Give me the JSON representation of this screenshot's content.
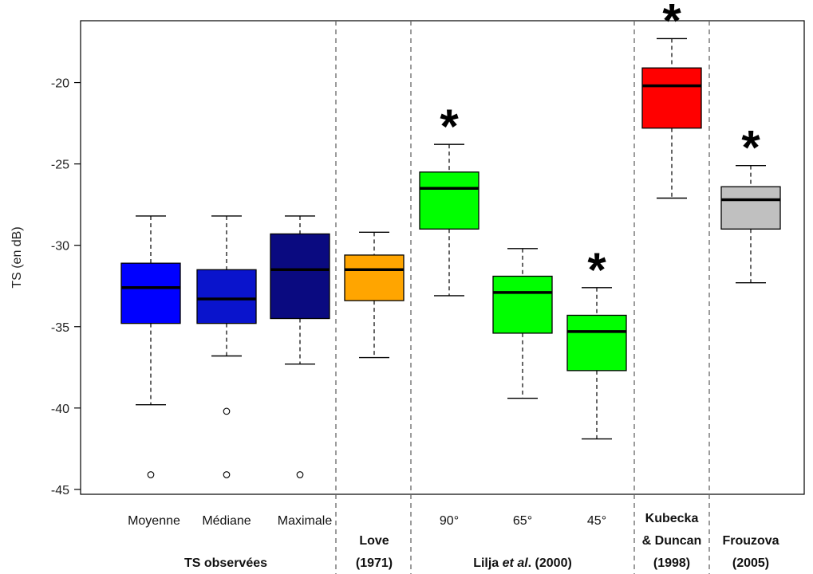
{
  "chart_data": {
    "type": "boxplot",
    "ylabel": "TS (en dB)",
    "ylim": [
      -45.3,
      -16.2
    ],
    "yticks": [
      -45,
      -40,
      -35,
      -30,
      -25,
      -20
    ],
    "grid": false,
    "boxes": [
      {
        "label": "Moyenne",
        "color": "#0000FF",
        "min": -39.8,
        "q1": -34.8,
        "median": -32.6,
        "q3": -31.1,
        "max": -28.2,
        "outliers": [
          -44.1
        ],
        "star": false
      },
      {
        "label": "Médiane",
        "color": "#0A14CC",
        "min": -36.8,
        "q1": -34.8,
        "median": -33.3,
        "q3": -31.5,
        "max": -28.2,
        "outliers": [
          -40.2,
          -44.1
        ],
        "star": false
      },
      {
        "label": "Maximale",
        "color": "#0A0A80",
        "min": -37.3,
        "q1": -34.5,
        "median": -31.5,
        "q3": -29.3,
        "max": -28.2,
        "outliers": [
          -44.1
        ],
        "star": false
      },
      {
        "label": "",
        "color": "#FFA500",
        "min": -36.9,
        "q1": -33.4,
        "median": -31.5,
        "q3": -30.6,
        "max": -29.2,
        "outliers": [],
        "star": false
      },
      {
        "label": "90°",
        "color": "#00FF00",
        "min": -33.1,
        "q1": -29.0,
        "median": -26.5,
        "q3": -25.5,
        "max": -23.8,
        "outliers": [],
        "star": true
      },
      {
        "label": "65°",
        "color": "#00FF00",
        "min": -39.4,
        "q1": -35.4,
        "median": -32.9,
        "q3": -31.9,
        "max": -30.2,
        "outliers": [],
        "star": false
      },
      {
        "label": "45°",
        "color": "#00FF00",
        "min": -41.9,
        "q1": -37.7,
        "median": -35.3,
        "q3": -34.3,
        "max": -32.6,
        "outliers": [],
        "star": true
      },
      {
        "label": "",
        "color": "#FF0000",
        "min": -27.1,
        "q1": -22.8,
        "median": -20.2,
        "q3": -19.1,
        "max": -17.3,
        "outliers": [],
        "star": true
      },
      {
        "label": "",
        "color": "#C0C0C0",
        "min": -32.3,
        "q1": -29.0,
        "median": -27.2,
        "q3": -26.4,
        "max": -25.1,
        "outliers": [],
        "star": true
      }
    ],
    "star_symbol": "*",
    "groups": [
      {
        "lines": [
          "TS observées"
        ],
        "italic_part": ""
      },
      {
        "lines": [
          "Love",
          "(1971)"
        ]
      },
      {
        "lines": [
          "Lilja et al. (2000)"
        ]
      },
      {
        "lines": [
          "Kubecka",
          "& Duncan",
          "(1998)"
        ]
      },
      {
        "lines": [
          "Frouzova",
          "(2005)"
        ]
      }
    ],
    "group_label_parts": {
      "lilja_prefix": "Lilja ",
      "lilja_italic": "et al",
      "lilja_suffix": ". (2000)"
    }
  }
}
